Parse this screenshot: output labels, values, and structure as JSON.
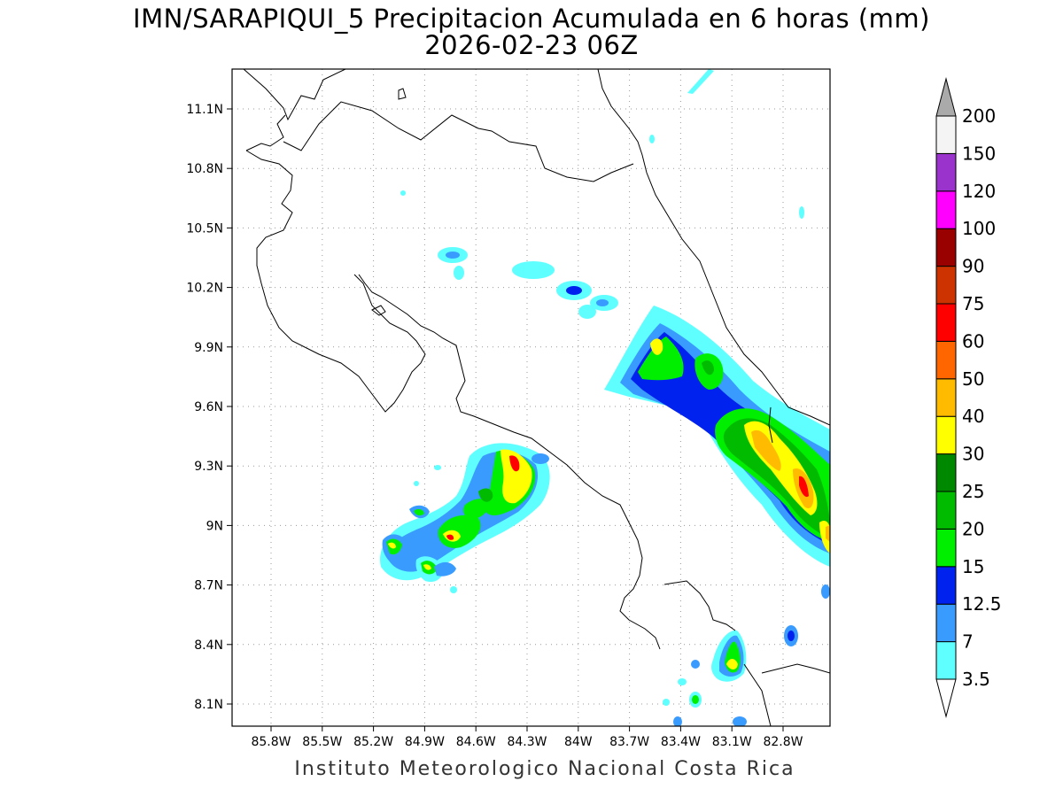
{
  "title_line1": "IMN/SARAPIQUI_5 Precipitacion Acumulada en 6 horas (mm)",
  "title_line2": "2026-02-23 06Z",
  "footer": "Instituto Meteorologico Nacional Costa Rica",
  "x_ticks": [
    "85.8W",
    "85.5W",
    "85.2W",
    "84.9W",
    "84.6W",
    "84.3W",
    "84W",
    "83.7W",
    "83.4W",
    "83.1W",
    "82.8W"
  ],
  "y_ticks": [
    "11.1N",
    "10.8N",
    "10.5N",
    "10.2N",
    "9.9N",
    "9.6N",
    "9.3N",
    "9N",
    "8.7N",
    "8.4N",
    "8.1N"
  ],
  "colorbar": {
    "labels": [
      "3.5",
      "7",
      "12.5",
      "15",
      "20",
      "25",
      "30",
      "40",
      "50",
      "60",
      "75",
      "90",
      "100",
      "120",
      "150",
      "200"
    ],
    "colors": [
      "#ffffff",
      "#5fffff",
      "#3a9bff",
      "#0022ee",
      "#00ee00",
      "#00bb00",
      "#008800",
      "#ffff00",
      "#ffbb00",
      "#ff6600",
      "#ff0000",
      "#cc3300",
      "#990000",
      "#ff00ff",
      "#9933cc",
      "#f4f4f4",
      "#aaaaaa"
    ]
  }
}
